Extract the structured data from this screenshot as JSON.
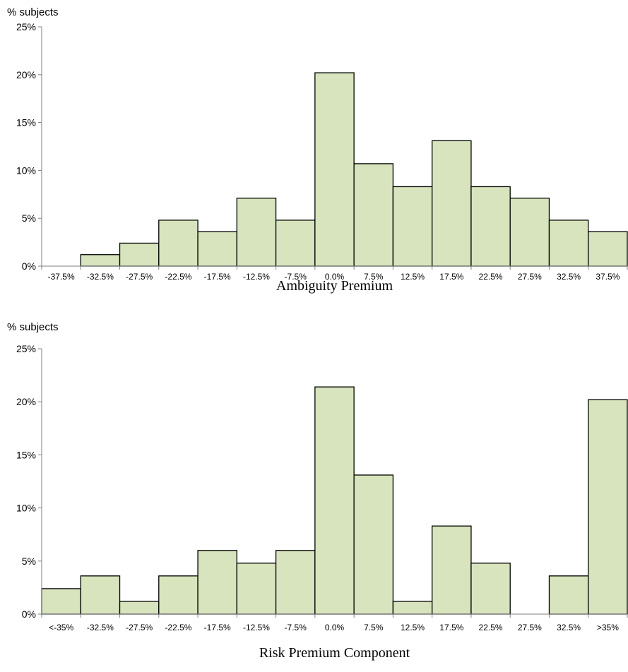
{
  "chart_data": [
    {
      "type": "bar",
      "title": "",
      "ylabel": "% subjects",
      "xlabel": "Ambiguity Premium",
      "ylim": [
        0,
        25
      ],
      "yticks": [
        "0%",
        "5%",
        "10%",
        "15%",
        "20%",
        "25%"
      ],
      "ytick_values": [
        0,
        5,
        10,
        15,
        20,
        25
      ],
      "categories": [
        "-37.5%",
        "-32.5%",
        "-27.5%",
        "-22.5%",
        "-17.5%",
        "-12.5%",
        "-7.5%",
        "0.0%",
        "7.5%",
        "12.5%",
        "17.5%",
        "22.5%",
        "27.5%",
        "32.5%",
        "37.5%"
      ],
      "values": [
        0,
        1.2,
        2.4,
        4.8,
        3.6,
        7.1,
        4.8,
        20.2,
        10.7,
        8.3,
        13.1,
        8.3,
        7.1,
        4.8,
        3.6
      ],
      "grid": false
    },
    {
      "type": "bar",
      "title": "",
      "ylabel": "% subjects",
      "xlabel": "Risk Premium Component",
      "ylim": [
        0,
        25
      ],
      "yticks": [
        "0%",
        "5%",
        "10%",
        "15%",
        "20%",
        "25%"
      ],
      "ytick_values": [
        0,
        5,
        10,
        15,
        20,
        25
      ],
      "categories": [
        "<-35%",
        "-32.5%",
        "-27.5%",
        "-22.5%",
        "-17.5%",
        "-12.5%",
        "-7.5%",
        "0.0%",
        "7.5%",
        "12.5%",
        "17.5%",
        "22.5%",
        "27.5%",
        "32.5%",
        ">35%"
      ],
      "values": [
        2.4,
        3.6,
        1.2,
        3.6,
        6.0,
        4.8,
        6.0,
        21.4,
        13.1,
        1.2,
        8.3,
        4.8,
        0,
        3.6,
        20.2
      ],
      "grid": false
    }
  ]
}
